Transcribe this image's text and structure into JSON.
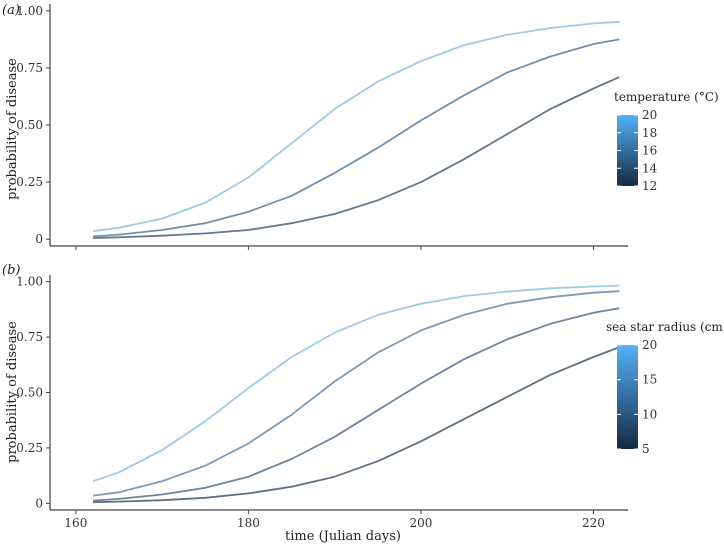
{
  "chart_data": [
    {
      "type": "line",
      "panel_label": "(a)",
      "xlabel": "",
      "ylabel": "probability of disease",
      "xlim": [
        157,
        224
      ],
      "ylim": [
        -0.03,
        1.03
      ],
      "x_ticks": [
        160,
        180,
        200,
        220
      ],
      "x_tick_labels_shown": false,
      "y_ticks": [
        0,
        0.25,
        0.5,
        0.75,
        1.0
      ],
      "y_tick_labels": [
        "0",
        "0.25",
        "0.50",
        "0.75",
        "1.00"
      ],
      "legend": {
        "title": "temperature (°C)",
        "type": "colorbar",
        "range": [
          12,
          20
        ],
        "ticks": [
          12,
          14,
          16,
          18,
          20
        ],
        "color_low": "#132B43",
        "color_high": "#56B1F7"
      },
      "series": [
        {
          "color": "#9ccbe6",
          "x": [
            162,
            165,
            170,
            175,
            180,
            185,
            190,
            195,
            200,
            205,
            210,
            215,
            220,
            223
          ],
          "y": [
            0.035,
            0.05,
            0.09,
            0.16,
            0.27,
            0.42,
            0.57,
            0.69,
            0.78,
            0.85,
            0.895,
            0.925,
            0.945,
            0.952
          ]
        },
        {
          "color": "#7190ae",
          "x": [
            162,
            165,
            170,
            175,
            180,
            185,
            190,
            195,
            200,
            205,
            210,
            215,
            220,
            223
          ],
          "y": [
            0.012,
            0.02,
            0.04,
            0.07,
            0.12,
            0.19,
            0.29,
            0.4,
            0.52,
            0.63,
            0.73,
            0.8,
            0.855,
            0.875
          ]
        },
        {
          "color": "#667789",
          "x": [
            162,
            165,
            170,
            175,
            180,
            185,
            190,
            195,
            200,
            205,
            210,
            215,
            220,
            223
          ],
          "y": [
            0.005,
            0.008,
            0.015,
            0.025,
            0.04,
            0.07,
            0.11,
            0.17,
            0.25,
            0.35,
            0.46,
            0.57,
            0.66,
            0.71
          ]
        }
      ]
    },
    {
      "type": "line",
      "panel_label": "(b)",
      "xlabel": "time (Julian days)",
      "ylabel": "probability of disease",
      "xlim": [
        157,
        224
      ],
      "ylim": [
        -0.03,
        1.03
      ],
      "x_ticks": [
        160,
        180,
        200,
        220
      ],
      "x_tick_labels": [
        "160",
        "180",
        "200",
        "220"
      ],
      "y_ticks": [
        0,
        0.25,
        0.5,
        0.75,
        1.0
      ],
      "y_tick_labels": [
        "0",
        "0.25",
        "0.50",
        "0.75",
        "1.00"
      ],
      "legend": {
        "title": "sea star radius (cm)",
        "type": "colorbar",
        "range": [
          5,
          20
        ],
        "ticks": [
          5,
          10,
          15,
          20
        ],
        "color_low": "#132B43",
        "color_high": "#56B1F7"
      },
      "series": [
        {
          "color": "#9ccbe6",
          "x": [
            162,
            165,
            170,
            175,
            180,
            185,
            190,
            195,
            200,
            205,
            210,
            215,
            220,
            223
          ],
          "y": [
            0.1,
            0.14,
            0.24,
            0.37,
            0.52,
            0.66,
            0.77,
            0.85,
            0.9,
            0.935,
            0.955,
            0.97,
            0.978,
            0.982
          ]
        },
        {
          "color": "#7d9ab7",
          "x": [
            162,
            165,
            170,
            175,
            180,
            185,
            190,
            195,
            200,
            205,
            210,
            215,
            220,
            223
          ],
          "y": [
            0.035,
            0.05,
            0.1,
            0.17,
            0.27,
            0.4,
            0.55,
            0.68,
            0.78,
            0.85,
            0.9,
            0.93,
            0.95,
            0.957
          ]
        },
        {
          "color": "#6f859e",
          "x": [
            162,
            165,
            170,
            175,
            180,
            185,
            190,
            195,
            200,
            205,
            210,
            215,
            220,
            223
          ],
          "y": [
            0.012,
            0.02,
            0.04,
            0.07,
            0.12,
            0.2,
            0.3,
            0.42,
            0.54,
            0.65,
            0.74,
            0.81,
            0.86,
            0.88
          ]
        },
        {
          "color": "#607080",
          "x": [
            162,
            165,
            170,
            175,
            180,
            185,
            190,
            195,
            200,
            205,
            210,
            215,
            220,
            223
          ],
          "y": [
            0.005,
            0.008,
            0.014,
            0.025,
            0.045,
            0.075,
            0.12,
            0.19,
            0.28,
            0.38,
            0.48,
            0.58,
            0.66,
            0.705
          ]
        }
      ]
    }
  ]
}
